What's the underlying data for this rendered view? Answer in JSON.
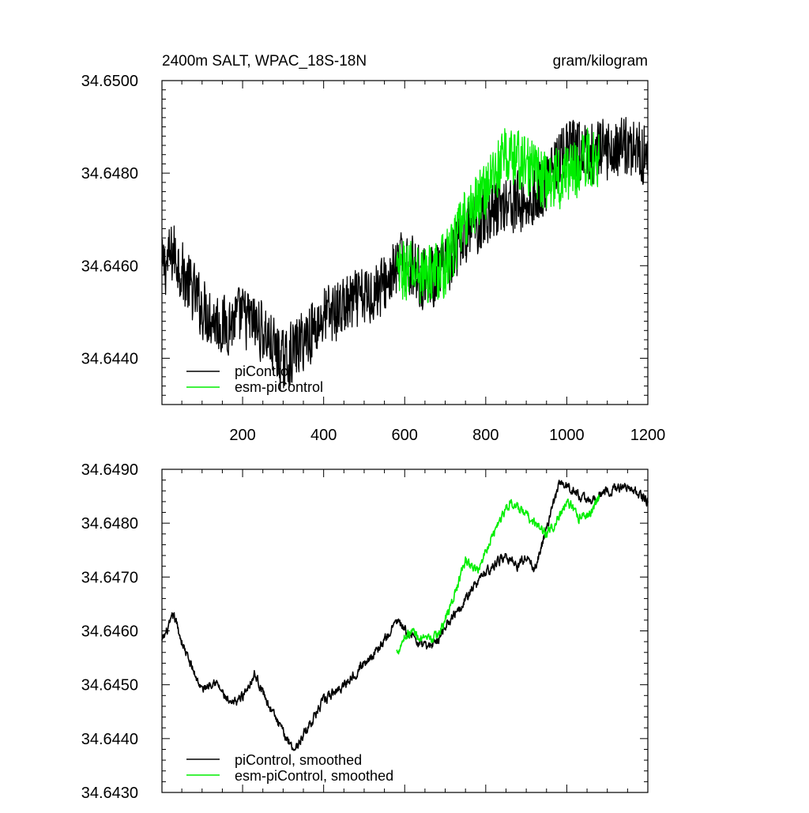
{
  "colors": {
    "series_a": "#000000",
    "series_b": "#00ee00"
  },
  "chart_data": [
    {
      "type": "line",
      "title": "2400m SALT, WPAC_18S-18N",
      "units": "gram/kilogram",
      "xlim": [
        1,
        1200
      ],
      "ylim": [
        34.643,
        34.65
      ],
      "xticks": [
        200,
        400,
        600,
        800,
        1000,
        1200
      ],
      "yticks": [
        34.644,
        34.646,
        34.648,
        34.65
      ],
      "ytick_labels": [
        "34.6440",
        "34.6460",
        "34.6480",
        "34.6500"
      ],
      "legend_placement": "bottom-left",
      "series": [
        {
          "name": "piControl",
          "color": "#000000",
          "noise": 0.00055,
          "x": [
            1,
            30,
            60,
            100,
            150,
            200,
            250,
            300,
            350,
            400,
            450,
            500,
            550,
            600,
            650,
            700,
            750,
            800,
            850,
            900,
            950,
            1000,
            1050,
            1100,
            1150,
            1200
          ],
          "y": [
            34.6459,
            34.6463,
            34.6457,
            34.6451,
            34.6447,
            34.6449,
            34.6446,
            34.6439,
            34.6444,
            34.6449,
            34.6451,
            34.6453,
            34.6456,
            34.6461,
            34.6457,
            34.6459,
            34.6467,
            34.6471,
            34.6474,
            34.6473,
            34.6478,
            34.6485,
            34.6484,
            34.6485,
            34.6486,
            34.6484
          ]
        },
        {
          "name": "esm-piControl",
          "color": "#00ee00",
          "noise": 0.00055,
          "x": [
            580,
            600,
            650,
            700,
            750,
            800,
            850,
            900,
            950,
            1000,
            1050,
            1080
          ],
          "y": [
            34.6458,
            34.6459,
            34.6458,
            34.646,
            34.647,
            34.6477,
            34.6484,
            34.6482,
            34.6478,
            34.648,
            34.6483,
            34.6484
          ]
        }
      ]
    },
    {
      "type": "line",
      "title": "",
      "xlim": [
        1,
        1200
      ],
      "ylim": [
        34.643,
        34.649
      ],
      "xticks": [
        200,
        400,
        600,
        800,
        1000,
        1200
      ],
      "yticks": [
        34.643,
        34.644,
        34.645,
        34.646,
        34.647,
        34.648,
        34.649
      ],
      "ytick_labels": [
        "34.6430",
        "34.6440",
        "34.6450",
        "34.6460",
        "34.6470",
        "34.6480",
        "34.6490"
      ],
      "legend_placement": "bottom-left",
      "series": [
        {
          "name": "piControl, smoothed",
          "color": "#000000",
          "noise": 0.00016,
          "x": [
            1,
            20,
            30,
            50,
            70,
            100,
            130,
            170,
            200,
            230,
            260,
            300,
            330,
            360,
            400,
            450,
            500,
            550,
            580,
            600,
            650,
            680,
            700,
            750,
            800,
            850,
            880,
            900,
            920,
            950,
            980,
            1000,
            1050,
            1100,
            1150,
            1200
          ],
          "y": [
            34.6458,
            34.6461,
            34.6463,
            34.6458,
            34.6454,
            34.6449,
            34.6451,
            34.6446,
            34.6448,
            34.6452,
            34.6447,
            34.6441,
            34.6438,
            34.6442,
            34.6447,
            34.645,
            34.6454,
            34.6458,
            34.6462,
            34.646,
            34.6457,
            34.6458,
            34.6461,
            34.6466,
            34.6471,
            34.6474,
            34.6472,
            34.6474,
            34.6471,
            34.6479,
            34.6487,
            34.6487,
            34.6484,
            34.6486,
            34.6487,
            34.6484
          ]
        },
        {
          "name": "esm-piControl, smoothed",
          "color": "#00ee00",
          "noise": 0.00016,
          "x": [
            580,
            600,
            620,
            650,
            680,
            700,
            720,
            750,
            780,
            800,
            830,
            860,
            890,
            920,
            950,
            980,
            1000,
            1030,
            1060,
            1080
          ],
          "y": [
            34.6456,
            34.6459,
            34.646,
            34.6458,
            34.6459,
            34.6462,
            34.6466,
            34.6473,
            34.6471,
            34.6475,
            34.648,
            34.6484,
            34.6482,
            34.648,
            34.6478,
            34.6481,
            34.6484,
            34.6481,
            34.6482,
            34.6485
          ]
        }
      ]
    }
  ]
}
